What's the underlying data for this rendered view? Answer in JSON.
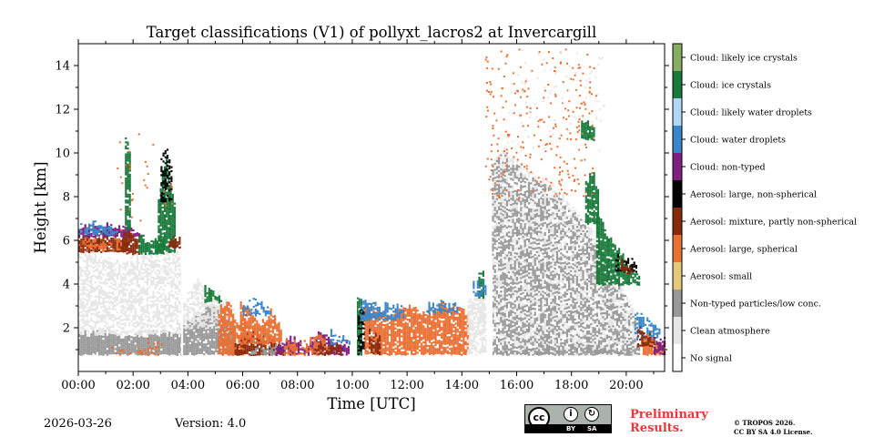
{
  "chart_data": {
    "type": "heatmap",
    "title": "Target classifications (V1) of pollyxt_lacros2 at Invercargill",
    "xlabel": "Time [UTC]",
    "ylabel": "Height [km]",
    "xlim": [
      0,
      21.4
    ],
    "ylim": [
      0,
      15
    ],
    "x_ticks": [
      0,
      2,
      4,
      6,
      8,
      10,
      12,
      14,
      16,
      18,
      20
    ],
    "x_tick_labels": [
      "00:00",
      "02:00",
      "04:00",
      "06:00",
      "08:00",
      "10:00",
      "12:00",
      "14:00",
      "16:00",
      "18:00",
      "20:00"
    ],
    "y_ticks": [
      2,
      4,
      6,
      8,
      10,
      12,
      14
    ],
    "y_tick_labels": [
      "2",
      "4",
      "6",
      "8",
      "10",
      "12",
      "14"
    ],
    "legend": {
      "placement": "right colorbar",
      "classes": [
        {
          "label": "No signal",
          "color": "#ffffff"
        },
        {
          "label": "Clean atmosphere",
          "color": "#e6e6e6"
        },
        {
          "label": "Non-typed particles/low conc.",
          "color": "#999999"
        },
        {
          "label": "Aerosol: small",
          "color": "#e3c878"
        },
        {
          "label": "Aerosol: large, spherical",
          "color": "#e96f33"
        },
        {
          "label": "Aerosol: mixture, partly non-spherical",
          "color": "#8a2a0c"
        },
        {
          "label": "Aerosol: large, non-spherical",
          "color": "#050505"
        },
        {
          "label": "Cloud: non-typed",
          "color": "#7f1f7f"
        },
        {
          "label": "Cloud: water droplets",
          "color": "#3a86c8"
        },
        {
          "label": "Cloud: likely water droplets",
          "color": "#b0d7f4"
        },
        {
          "label": "Cloud: ice crystals",
          "color": "#1a7a3c"
        },
        {
          "label": "Cloud: likely ice crystals",
          "color": "#86ad61"
        }
      ]
    },
    "regions": [
      {
        "cls": 2,
        "t0": 0,
        "t1": 3.75,
        "b0": 0.8,
        "b1": 1.7,
        "tops": [
          1.7,
          1.8,
          1.6,
          1.7,
          1.8,
          1.6
        ],
        "density": 0.95
      },
      {
        "cls": 1,
        "t0": 0,
        "t1": 3.75,
        "b0": 1.7,
        "b1": 5.6,
        "tops": [
          5.6,
          5.4,
          5.0,
          5.5,
          5.6,
          5.4
        ],
        "density": 0.55
      },
      {
        "cls": 4,
        "t0": 1.2,
        "t1": 3.2,
        "b0": 0.8,
        "b1": 1.2,
        "tops": [
          1.2,
          0.9,
          1.4,
          1.0
        ],
        "density": 0.3
      },
      {
        "cls": 5,
        "t0": 0.0,
        "t1": 1.8,
        "b0": 5.5,
        "b1": 6.3,
        "tops": [
          6.2,
          6.1,
          6.3,
          6.0
        ],
        "density": 0.9
      },
      {
        "cls": 4,
        "t0": 0.0,
        "t1": 1.7,
        "b0": 5.6,
        "b1": 6.1,
        "tops": [
          6.0,
          5.9,
          6.1
        ],
        "density": 0.5
      },
      {
        "cls": 7,
        "t0": 0.0,
        "t1": 2.3,
        "b0": 6.2,
        "b1": 6.6,
        "tops": [
          6.5,
          6.8,
          6.6,
          6.4
        ],
        "density": 0.8
      },
      {
        "cls": 8,
        "t0": 0.0,
        "t1": 1.4,
        "b0": 6.3,
        "b1": 6.8,
        "tops": [
          6.6,
          6.8,
          6.5
        ],
        "density": 0.7
      },
      {
        "cls": 5,
        "t0": 1.6,
        "t1": 2.2,
        "b0": 5.4,
        "b1": 6.3,
        "tops": [
          6.3,
          6.1
        ],
        "density": 0.85
      },
      {
        "cls": 10,
        "t0": 1.7,
        "t1": 1.9,
        "b0": 6.5,
        "b1": 10.8,
        "tops": [
          10.8,
          10.0
        ],
        "density": 0.85
      },
      {
        "cls": 10,
        "t0": 2.2,
        "t1": 3.1,
        "b0": 5.4,
        "b1": 6.5,
        "tops": [
          6.2,
          6.0,
          6.3
        ],
        "density": 0.8
      },
      {
        "cls": 10,
        "t0": 2.9,
        "t1": 3.5,
        "b0": 5.5,
        "b1": 8.0,
        "tops": [
          7.8,
          9.2,
          10.0,
          8.5,
          7.5
        ],
        "density": 0.9
      },
      {
        "cls": 6,
        "t0": 3.0,
        "t1": 3.4,
        "b0": 7.8,
        "b1": 9.8,
        "tops": [
          9.8,
          10.5,
          9.0
        ],
        "density": 0.45
      },
      {
        "cls": 5,
        "t0": 3.3,
        "t1": 3.75,
        "b0": 5.7,
        "b1": 6.2,
        "tops": [
          6.1,
          6.0
        ],
        "density": 0.8
      },
      {
        "cls": 2,
        "t0": 3.75,
        "t1": 5.7,
        "b0": 0.8,
        "b1": 1.9,
        "tops": [
          2.0,
          2.5,
          3.0,
          2.6,
          2.0
        ],
        "density": 0.9
      },
      {
        "cls": 1,
        "t0": 3.75,
        "t1": 5.7,
        "b0": 2.0,
        "b1": 3.2,
        "tops": [
          3.2,
          4.2,
          4.0,
          3.5,
          2.8
        ],
        "density": 0.6
      },
      {
        "cls": 4,
        "t0": 5.1,
        "t1": 6.1,
        "b0": 0.8,
        "b1": 3.0,
        "tops": [
          2.8,
          3.3,
          2.2,
          2.6
        ],
        "density": 0.85
      },
      {
        "cls": 10,
        "t0": 4.6,
        "t1": 5.2,
        "b0": 3.2,
        "b1": 3.9,
        "tops": [
          3.9,
          3.6,
          3.3
        ],
        "density": 0.8
      },
      {
        "cls": 5,
        "t0": 5.7,
        "t1": 7.5,
        "b0": 0.8,
        "b1": 1.5,
        "tops": [
          1.3,
          1.8,
          1.4,
          1.2
        ],
        "density": 0.85
      },
      {
        "cls": 4,
        "t0": 5.9,
        "t1": 7.4,
        "b0": 1.3,
        "b1": 3.2,
        "tops": [
          3.2,
          2.7,
          2.2,
          2.8,
          1.8
        ],
        "density": 0.85
      },
      {
        "cls": 8,
        "t0": 6.0,
        "t1": 7.0,
        "b0": 2.6,
        "b1": 3.3,
        "tops": [
          3.0,
          3.4,
          2.8
        ],
        "density": 0.55
      },
      {
        "cls": 2,
        "t0": 6.3,
        "t1": 7.2,
        "b0": 0.8,
        "b1": 1.2,
        "tops": [
          1.0,
          1.3
        ],
        "density": 0.6
      },
      {
        "cls": 7,
        "t0": 7.2,
        "t1": 9.9,
        "b0": 0.8,
        "b1": 1.7,
        "tops": [
          1.2,
          1.6,
          1.1,
          1.9,
          1.4,
          1.3
        ],
        "density": 0.75
      },
      {
        "cls": 4,
        "t0": 7.5,
        "t1": 9.2,
        "b0": 0.8,
        "b1": 1.5,
        "tops": [
          1.5,
          1.2,
          1.7,
          1.1
        ],
        "density": 0.6
      },
      {
        "cls": 5,
        "t0": 8.6,
        "t1": 9.6,
        "b0": 0.8,
        "b1": 1.1,
        "tops": [
          1.1,
          1.2
        ],
        "density": 0.7
      },
      {
        "cls": 8,
        "t0": 9.2,
        "t1": 9.9,
        "b0": 1.3,
        "b1": 1.9,
        "tops": [
          1.8,
          1.5
        ],
        "density": 0.5
      },
      {
        "cls": 10,
        "t0": 10.15,
        "t1": 10.3,
        "b0": 0.8,
        "b1": 3.5,
        "tops": [
          3.5,
          3.2
        ],
        "density": 0.9
      },
      {
        "cls": 6,
        "t0": 10.2,
        "t1": 10.45,
        "b0": 0.8,
        "b1": 3.0,
        "tops": [
          2.8,
          3.0
        ],
        "density": 0.55
      },
      {
        "cls": 4,
        "t0": 10.45,
        "t1": 14.2,
        "b0": 0.8,
        "b1": 3.0,
        "tops": [
          2.9,
          2.7,
          2.5,
          3.0,
          2.8,
          2.6,
          3.1,
          2.9,
          2.7
        ],
        "density": 0.85
      },
      {
        "cls": 5,
        "t0": 10.6,
        "t1": 11.0,
        "b0": 0.8,
        "b1": 1.8,
        "tops": [
          1.8,
          1.5
        ],
        "density": 0.7
      },
      {
        "cls": 8,
        "t0": 10.3,
        "t1": 11.9,
        "b0": 2.4,
        "b1": 3.2,
        "tops": [
          3.2,
          3.1,
          3.0,
          2.9
        ],
        "density": 0.75
      },
      {
        "cls": 8,
        "t0": 12.7,
        "t1": 13.9,
        "b0": 2.7,
        "b1": 3.1,
        "tops": [
          3.0,
          3.2,
          2.9
        ],
        "density": 0.65
      },
      {
        "cls": 1,
        "t0": 14.2,
        "t1": 14.9,
        "b0": 0.8,
        "b1": 3.5,
        "tops": [
          3.2,
          3.6,
          3.8
        ],
        "density": 0.7
      },
      {
        "cls": 10,
        "t0": 14.6,
        "t1": 14.8,
        "b0": 3.4,
        "b1": 4.6,
        "tops": [
          4.5,
          4.7
        ],
        "density": 0.75
      },
      {
        "cls": 8,
        "t0": 14.4,
        "t1": 14.9,
        "b0": 3.5,
        "b1": 4.2,
        "tops": [
          4.2,
          4.0
        ],
        "density": 0.55
      },
      {
        "cls": 1,
        "t0": 15.1,
        "t1": 20.3,
        "b0": 0.8,
        "b1": 9.0,
        "tops": [
          9.8,
          10.2,
          9.6,
          9.2,
          8.8,
          8.5,
          8.0,
          7.4,
          6.8,
          6.0,
          5.0,
          3.8,
          2.8
        ],
        "density": 0.5
      },
      {
        "cls": 2,
        "t0": 15.1,
        "t1": 20.3,
        "b0": 0.8,
        "b1": 9.0,
        "tops": [
          9.6,
          10.0,
          9.4,
          9.0,
          8.6,
          8.2,
          7.8,
          7.2,
          6.5,
          5.8,
          4.8,
          3.6,
          2.6
        ],
        "density": 0.42
      },
      {
        "cls": 2,
        "t0": 15.1,
        "t1": 20.5,
        "b0": 0.8,
        "b1": 1.0,
        "tops": [
          1.0,
          1.1
        ],
        "density": 0.6
      },
      {
        "cls": 10,
        "t0": 18.35,
        "t1": 18.8,
        "b0": 10.6,
        "b1": 11.5,
        "tops": [
          11.5,
          11.3
        ],
        "density": 0.85
      },
      {
        "cls": 10,
        "t0": 18.5,
        "t1": 19.0,
        "b0": 6.8,
        "b1": 9.5,
        "tops": [
          8.6,
          9.2,
          8.0
        ],
        "density": 0.85
      },
      {
        "cls": 10,
        "t0": 18.9,
        "t1": 20.5,
        "b0": 4.0,
        "b1": 6.9,
        "tops": [
          7.2,
          6.3,
          5.6,
          4.8,
          4.5
        ],
        "density": 0.85
      },
      {
        "cls": 6,
        "t0": 19.6,
        "t1": 20.4,
        "b0": 4.6,
        "b1": 5.2,
        "tops": [
          5.3,
          5.0
        ],
        "density": 0.6
      },
      {
        "cls": 5,
        "t0": 19.8,
        "t1": 20.2,
        "b0": 4.5,
        "b1": 5.0,
        "tops": [
          5.0,
          4.7
        ],
        "density": 0.6
      },
      {
        "cls": 8,
        "t0": 20.3,
        "t1": 21.2,
        "b0": 1.5,
        "b1": 2.8,
        "tops": [
          2.8,
          2.3,
          1.9
        ],
        "density": 0.65
      },
      {
        "cls": 4,
        "t0": 20.6,
        "t1": 21.4,
        "b0": 0.8,
        "b1": 1.6,
        "tops": [
          1.8,
          1.4,
          1.2
        ],
        "density": 0.85
      },
      {
        "cls": 5,
        "t0": 20.4,
        "t1": 21.0,
        "b0": 1.2,
        "b1": 2.0,
        "tops": [
          2.1,
          1.6
        ],
        "density": 0.6
      },
      {
        "cls": 7,
        "t0": 21.0,
        "t1": 21.4,
        "b0": 0.8,
        "b1": 1.6,
        "tops": [
          1.6,
          1.4
        ],
        "density": 0.7
      },
      {
        "cls": 0,
        "t0": 3.75,
        "t1": 3.8,
        "b0": 0.8,
        "b1": 6.0,
        "tops": [
          6.0
        ],
        "density": 1.0
      },
      {
        "cls": 0,
        "t0": 9.95,
        "t1": 10.15,
        "b0": 0.8,
        "b1": 4.0,
        "tops": [
          4.0
        ],
        "density": 1.0
      },
      {
        "cls": 0,
        "t0": 14.9,
        "t1": 15.1,
        "b0": 0.8,
        "b1": 5.0,
        "tops": [
          5.0
        ],
        "density": 1.0
      }
    ],
    "scatter": [
      {
        "cls": 4,
        "t0": 14.8,
        "t1": 18.9,
        "h0": 8.0,
        "h1": 14.8,
        "count": 260
      },
      {
        "cls": 1,
        "t0": 15.6,
        "t1": 19.2,
        "h0": 10.0,
        "h1": 14.8,
        "count": 90
      },
      {
        "cls": 4,
        "t0": 1.4,
        "t1": 3.4,
        "h0": 6.5,
        "h1": 11.0,
        "count": 30
      }
    ]
  },
  "footer": {
    "date": "2026-03-26",
    "version": "Version: 4.0",
    "license_badge": {
      "main": "cc",
      "by": "BY",
      "sa": "SA"
    },
    "preliminary_line1": "Preliminary",
    "preliminary_line2": "Results.",
    "copyright_line1": "© TROPOS 2026.",
    "copyright_line2": "CC BY SA 4.0 License."
  }
}
